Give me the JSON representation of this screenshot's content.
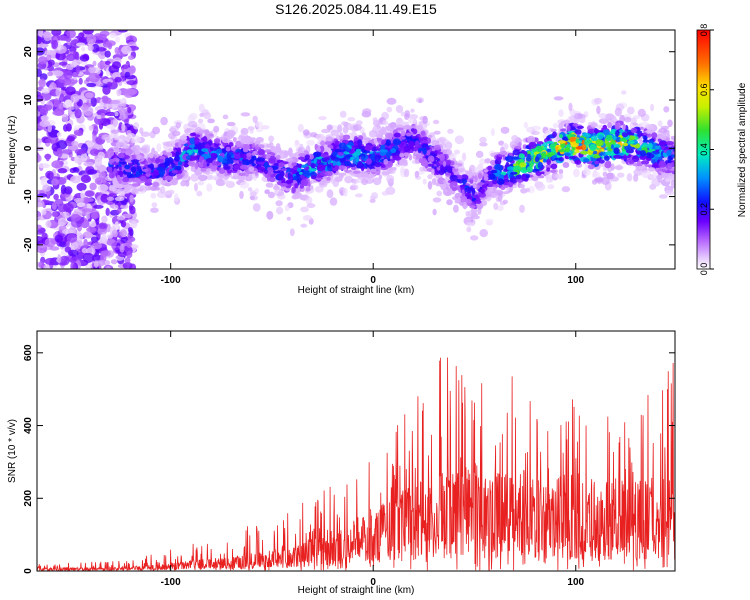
{
  "chart_data": [
    {
      "type": "heatmap",
      "title": "S126.2025.084.11.49.E15",
      "xlabel": "Height of straight line (km)",
      "ylabel": "Frequency (Hz)",
      "xlim": [
        -166,
        149
      ],
      "ylim": [
        -25,
        24.5
      ],
      "xticks": [
        -100,
        0,
        100
      ],
      "xtick_labels": [
        "-100",
        "0",
        "100"
      ],
      "yticks": [
        -20,
        -10,
        0,
        10,
        20
      ],
      "ytick_labels": [
        "-20",
        "-10",
        "0",
        "10",
        "20"
      ],
      "colorbar": {
        "label": "Normalized spectral amplitude",
        "range": [
          0.0,
          0.8
        ],
        "ticks": [
          0.0,
          0.2,
          0.4,
          0.6,
          0.8
        ],
        "tick_labels": [
          "0.0",
          "0.2",
          "0.4",
          "0.6",
          "0.8"
        ],
        "colormap": "rainbow"
      },
      "ridge": {
        "x": [
          -130,
          -120,
          -110,
          -100,
          -90,
          -80,
          -70,
          -60,
          -50,
          -40,
          -30,
          -20,
          -10,
          0,
          10,
          20,
          30,
          40,
          45,
          50,
          55,
          60,
          70,
          80,
          90,
          100,
          110,
          120,
          130,
          140,
          149
        ],
        "y": [
          -3,
          -4,
          -5,
          -4,
          0,
          -1,
          -2,
          -2,
          -4,
          -6,
          -4,
          -2,
          -1,
          -2,
          0,
          2,
          -2,
          -6,
          -8,
          -10,
          -7,
          -5,
          -4,
          -2,
          0,
          1,
          0,
          1,
          1,
          -1,
          -2
        ],
        "peak_amplitude": [
          0.25,
          0.3,
          0.25,
          0.3,
          0.4,
          0.35,
          0.35,
          0.25,
          0.25,
          0.3,
          0.45,
          0.4,
          0.4,
          0.35,
          0.3,
          0.25,
          0.3,
          0.2,
          0.3,
          0.25,
          0.2,
          0.3,
          0.55,
          0.65,
          0.7,
          0.8,
          0.8,
          0.8,
          0.55,
          0.4,
          0.35
        ]
      },
      "noise_region_x": [
        -166,
        -118
      ]
    },
    {
      "type": "line",
      "xlabel": "Height of straight line (km)",
      "ylabel": "SNR (10 * v/v)",
      "xlim": [
        -166,
        149
      ],
      "ylim": [
        0,
        660
      ],
      "xticks": [
        -100,
        0,
        100
      ],
      "xtick_labels": [
        "-100",
        "0",
        "100"
      ],
      "yticks": [
        0,
        200,
        400,
        600
      ],
      "ytick_labels": [
        "0",
        "200",
        "400",
        "600"
      ],
      "color": "#e82020",
      "envelope": {
        "x": [
          -166,
          -140,
          -120,
          -100,
          -80,
          -60,
          -40,
          -20,
          -10,
          0,
          10,
          20,
          30,
          40,
          50,
          60,
          70,
          80,
          90,
          100,
          110,
          120,
          130,
          140,
          149
        ],
        "mean": [
          8,
          8,
          10,
          18,
          28,
          40,
          60,
          90,
          110,
          140,
          170,
          190,
          210,
          230,
          240,
          230,
          220,
          210,
          210,
          210,
          200,
          200,
          200,
          210,
          220
        ],
        "max": [
          20,
          25,
          30,
          60,
          90,
          130,
          180,
          240,
          300,
          330,
          400,
          460,
          590,
          600,
          630,
          520,
          560,
          460,
          500,
          470,
          470,
          450,
          450,
          520,
          590
        ]
      }
    }
  ]
}
